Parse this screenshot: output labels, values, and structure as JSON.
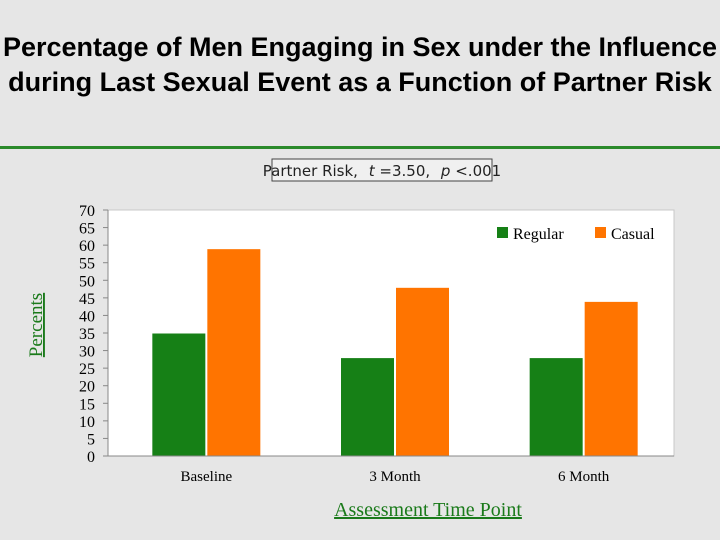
{
  "title": "Percentage of Men Engaging in Sex under the Influence during Last Sexual Event as a Function of Partner Risk",
  "annotation": {
    "prefix": "Partner Risk,",
    "t_symbol": "t",
    "t_value": "=3.50,",
    "p_symbol": "p",
    "p_value": "<.001"
  },
  "colors": {
    "regular": "#168016",
    "casual": "#ff7400",
    "rule": "#2b8a2b",
    "axis_label": "#1a7a1a"
  },
  "chart_data": {
    "type": "bar",
    "categories": [
      "Baseline",
      "3 Month",
      "6 Month"
    ],
    "series": [
      {
        "name": "Regular",
        "values": [
          35,
          28,
          28
        ]
      },
      {
        "name": "Casual",
        "values": [
          59,
          48,
          44
        ]
      }
    ],
    "xlabel": "Assessment Time Point",
    "ylabel": "Percents",
    "ylim": [
      0,
      70
    ],
    "yticks": [
      0,
      5,
      10,
      15,
      20,
      25,
      30,
      35,
      40,
      45,
      50,
      55,
      60,
      65,
      70
    ],
    "grid": false,
    "legend_position": "top-right"
  }
}
